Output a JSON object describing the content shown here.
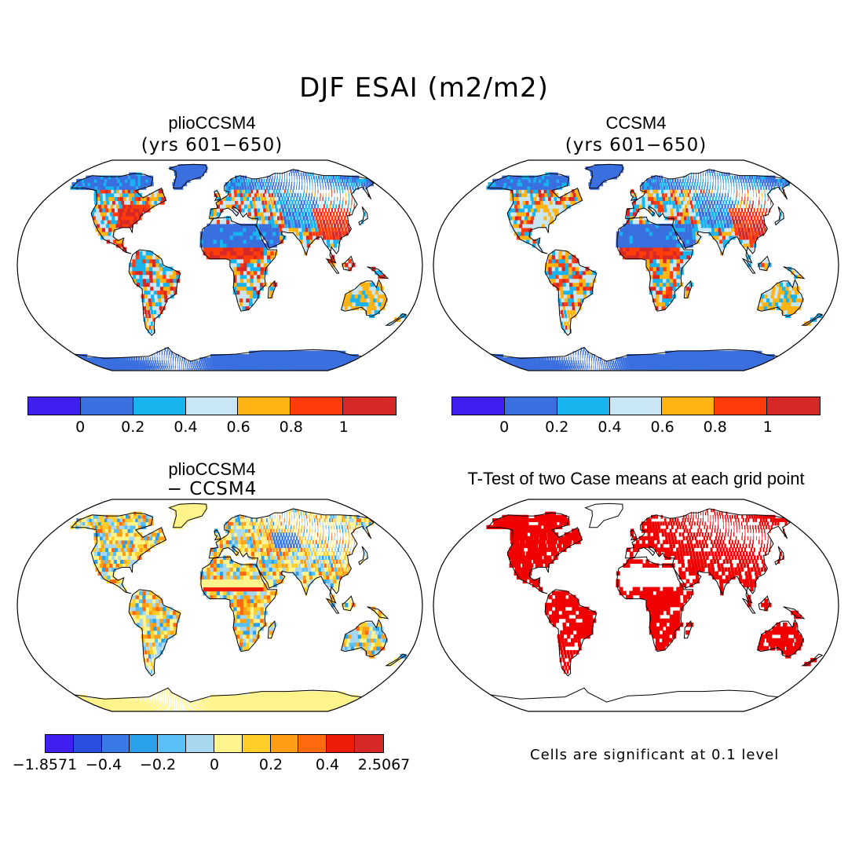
{
  "figure": {
    "title": "DJF ESAI (m2/m2)",
    "panels": [
      {
        "id": "plio",
        "title": "plioCCSM4",
        "subtitle": "(yrs 601−650)"
      },
      {
        "id": "ccsm",
        "title": "CCSM4",
        "subtitle": "(yrs 601−650)"
      },
      {
        "id": "diff",
        "title": "plioCCSM4",
        "subtitle": "− CCSM4"
      },
      {
        "id": "ttest",
        "title": "T-Test of two Case means at each grid point",
        "subtitle": ""
      }
    ],
    "colorbar_top": {
      "colors": [
        "#4020f0",
        "#3a6fe0",
        "#18b4f0",
        "#c8e6f4",
        "#ffb414",
        "#ff3c0a",
        "#d72828"
      ],
      "ticks": [
        "0",
        "0.2",
        "0.4",
        "0.6",
        "0.8",
        "1"
      ]
    },
    "colorbar_diff": {
      "colors": [
        "#4020f0",
        "#2a4ee0",
        "#3a7ae6",
        "#2aa0ea",
        "#58c0f4",
        "#a8d8f0",
        "#fff48c",
        "#ffce28",
        "#ffa014",
        "#ff6a10",
        "#f01c0a",
        "#d72828"
      ],
      "ticks": [
        "−1.8571",
        "−0.4",
        "−0.2",
        "0",
        "0.2",
        "0.4",
        "2.5067"
      ]
    },
    "significance_note": "Cells are significant at 0.1 level",
    "colors": {
      "ocean": "#ffffff",
      "coast": "#000000",
      "ttest_significant": "#f00000",
      "antarctica_abs": "#3a6fe0",
      "antarctica_diff": "#fff48c"
    }
  }
}
